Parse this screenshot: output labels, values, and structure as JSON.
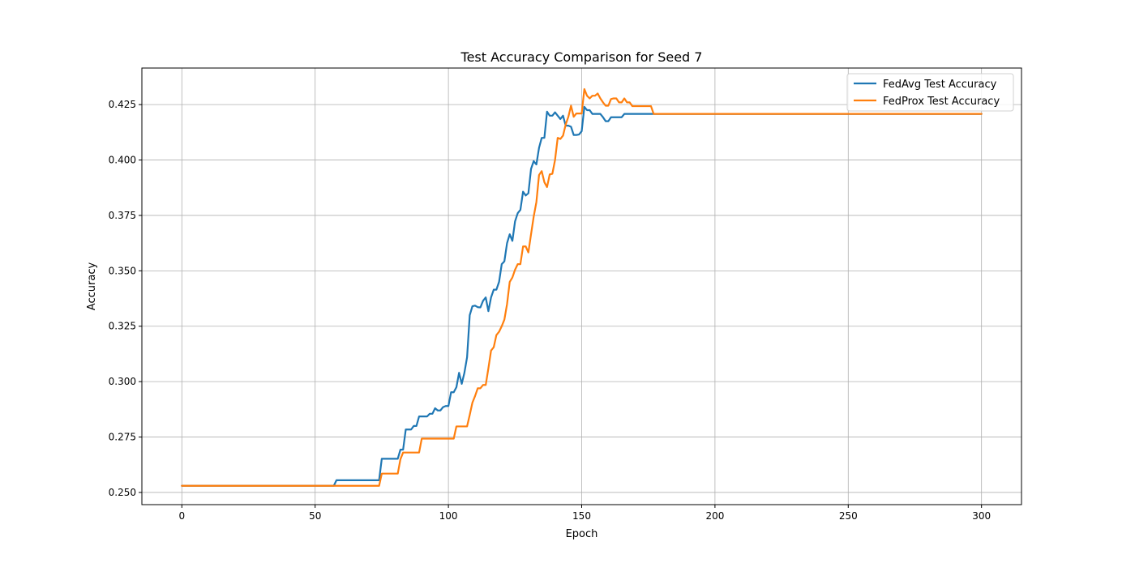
{
  "chart_data": {
    "type": "line",
    "title": "Test Accuracy Comparison for Seed 7",
    "xlabel": "Epoch",
    "ylabel": "Accuracy",
    "xlim": [
      -15,
      315
    ],
    "ylim": [
      0.2445,
      0.4415
    ],
    "xticks": [
      0,
      50,
      100,
      150,
      200,
      250,
      300
    ],
    "yticks": [
      0.25,
      0.275,
      0.3,
      0.325,
      0.35,
      0.375,
      0.4,
      0.425
    ],
    "ytick_labels": [
      "0.250",
      "0.275",
      "0.300",
      "0.325",
      "0.350",
      "0.375",
      "0.400",
      "0.425"
    ],
    "grid": true,
    "legend_position": "top-right",
    "series": [
      {
        "name": "FedAvg Test Accuracy",
        "color": "#1f77b4",
        "points": [
          [
            0,
            0.253
          ],
          [
            57,
            0.253
          ],
          [
            58,
            0.2555
          ],
          [
            74,
            0.2555
          ],
          [
            75,
            0.2652
          ],
          [
            81,
            0.2652
          ],
          [
            82,
            0.2693
          ],
          [
            83,
            0.2693
          ],
          [
            84,
            0.2784
          ],
          [
            86,
            0.2784
          ],
          [
            87,
            0.28
          ],
          [
            88,
            0.28
          ],
          [
            89,
            0.2843
          ],
          [
            92,
            0.2843
          ],
          [
            93,
            0.2855
          ],
          [
            94,
            0.2855
          ],
          [
            95,
            0.288
          ],
          [
            96,
            0.287
          ],
          [
            97,
            0.287
          ],
          [
            98,
            0.2885
          ],
          [
            99,
            0.289
          ],
          [
            100,
            0.289
          ],
          [
            101,
            0.2952
          ],
          [
            102,
            0.2952
          ],
          [
            103,
            0.2975
          ],
          [
            104,
            0.304
          ],
          [
            105,
            0.299
          ],
          [
            106,
            0.304
          ],
          [
            107,
            0.311
          ],
          [
            108,
            0.33
          ],
          [
            109,
            0.334
          ],
          [
            110,
            0.3343
          ],
          [
            111,
            0.3336
          ],
          [
            112,
            0.3335
          ],
          [
            113,
            0.3365
          ],
          [
            114,
            0.338
          ],
          [
            115,
            0.3318
          ],
          [
            116,
            0.338
          ],
          [
            117,
            0.3415
          ],
          [
            118,
            0.3415
          ],
          [
            119,
            0.345
          ],
          [
            120,
            0.353
          ],
          [
            121,
            0.3543
          ],
          [
            122,
            0.3625
          ],
          [
            123,
            0.3665
          ],
          [
            124,
            0.3635
          ],
          [
            125,
            0.3723
          ],
          [
            126,
            0.376
          ],
          [
            127,
            0.3775
          ],
          [
            128,
            0.3857
          ],
          [
            129,
            0.384
          ],
          [
            130,
            0.385
          ],
          [
            131,
            0.396
          ],
          [
            132,
            0.3995
          ],
          [
            133,
            0.398
          ],
          [
            134,
            0.4055
          ],
          [
            135,
            0.41
          ],
          [
            136,
            0.41
          ],
          [
            137,
            0.4218
          ],
          [
            138,
            0.42
          ],
          [
            139,
            0.42
          ],
          [
            140,
            0.4215
          ],
          [
            141,
            0.42
          ],
          [
            142,
            0.4185
          ],
          [
            143,
            0.42
          ],
          [
            144,
            0.4155
          ],
          [
            145,
            0.4155
          ],
          [
            146,
            0.415
          ],
          [
            147,
            0.4113
          ],
          [
            148,
            0.4113
          ],
          [
            149,
            0.4115
          ],
          [
            150,
            0.413
          ],
          [
            151,
            0.424
          ],
          [
            152,
            0.4225
          ],
          [
            153,
            0.4225
          ],
          [
            154,
            0.4208
          ],
          [
            155,
            0.4208
          ],
          [
            156,
            0.4208
          ],
          [
            157,
            0.4208
          ],
          [
            158,
            0.4193
          ],
          [
            159,
            0.4175
          ],
          [
            160,
            0.4175
          ],
          [
            161,
            0.4193
          ],
          [
            162,
            0.4193
          ],
          [
            163,
            0.4193
          ],
          [
            164,
            0.4193
          ],
          [
            165,
            0.4193
          ],
          [
            166,
            0.4208
          ],
          [
            167,
            0.4208
          ],
          [
            300,
            0.4208
          ]
        ]
      },
      {
        "name": "FedProx Test Accuracy",
        "color": "#ff7f0e",
        "points": [
          [
            0,
            0.253
          ],
          [
            74,
            0.253
          ],
          [
            75,
            0.2585
          ],
          [
            81,
            0.2585
          ],
          [
            82,
            0.265
          ],
          [
            83,
            0.268
          ],
          [
            89,
            0.268
          ],
          [
            90,
            0.2743
          ],
          [
            102,
            0.2743
          ],
          [
            103,
            0.2798
          ],
          [
            107,
            0.2798
          ],
          [
            108,
            0.285
          ],
          [
            109,
            0.2905
          ],
          [
            110,
            0.2935
          ],
          [
            111,
            0.297
          ],
          [
            112,
            0.297
          ],
          [
            113,
            0.2985
          ],
          [
            114,
            0.2985
          ],
          [
            115,
            0.306
          ],
          [
            116,
            0.314
          ],
          [
            117,
            0.3155
          ],
          [
            118,
            0.321
          ],
          [
            119,
            0.3225
          ],
          [
            120,
            0.325
          ],
          [
            121,
            0.328
          ],
          [
            122,
            0.335
          ],
          [
            123,
            0.345
          ],
          [
            124,
            0.347
          ],
          [
            125,
            0.3505
          ],
          [
            126,
            0.353
          ],
          [
            127,
            0.353
          ],
          [
            128,
            0.361
          ],
          [
            129,
            0.361
          ],
          [
            130,
            0.3583
          ],
          [
            131,
            0.3665
          ],
          [
            132,
            0.3745
          ],
          [
            133,
            0.381
          ],
          [
            134,
            0.3932
          ],
          [
            135,
            0.395
          ],
          [
            136,
            0.39
          ],
          [
            137,
            0.3878
          ],
          [
            138,
            0.3935
          ],
          [
            139,
            0.3938
          ],
          [
            140,
            0.4
          ],
          [
            141,
            0.41
          ],
          [
            142,
            0.4095
          ],
          [
            143,
            0.411
          ],
          [
            144,
            0.416
          ],
          [
            145,
            0.4195
          ],
          [
            146,
            0.4245
          ],
          [
            147,
            0.4195
          ],
          [
            148,
            0.421
          ],
          [
            149,
            0.421
          ],
          [
            150,
            0.421
          ],
          [
            151,
            0.432
          ],
          [
            152,
            0.429
          ],
          [
            153,
            0.4278
          ],
          [
            154,
            0.429
          ],
          [
            155,
            0.429
          ],
          [
            156,
            0.43
          ],
          [
            157,
            0.4278
          ],
          [
            158,
            0.426
          ],
          [
            159,
            0.4245
          ],
          [
            160,
            0.4245
          ],
          [
            161,
            0.4275
          ],
          [
            162,
            0.4278
          ],
          [
            163,
            0.4278
          ],
          [
            164,
            0.426
          ],
          [
            165,
            0.426
          ],
          [
            166,
            0.4278
          ],
          [
            167,
            0.426
          ],
          [
            168,
            0.426
          ],
          [
            169,
            0.4243
          ],
          [
            176,
            0.4243
          ],
          [
            177,
            0.4208
          ],
          [
            300,
            0.4208
          ]
        ]
      }
    ]
  }
}
